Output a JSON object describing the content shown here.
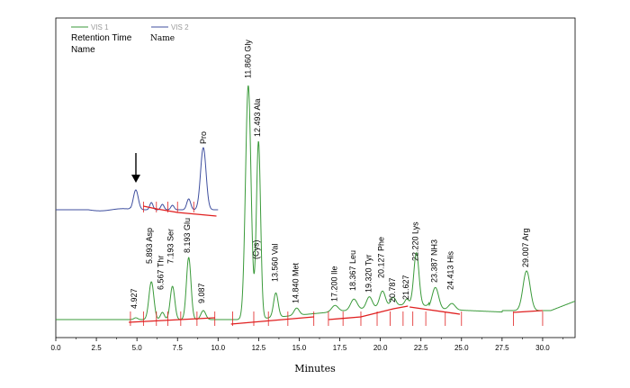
{
  "legend": {
    "series1": "VIS 1",
    "series2": "VIS 2",
    "line1_left": "Retention Time",
    "line1_right": "Name",
    "line2": "Name"
  },
  "colors": {
    "green": "#3a9a3a",
    "blue": "#3f4f9f",
    "baseline": "#e02020",
    "arrow": "#000000",
    "cys": "#a0339a",
    "pro": "#8a2a6a"
  },
  "chart_data": {
    "type": "line",
    "xlabel": "Minutes",
    "xlim": [
      0,
      32
    ],
    "xticks": [
      "0.0",
      "2.5",
      "5.0",
      "7.5",
      "10.0",
      "12.5",
      "15.0",
      "17.5",
      "20.0",
      "22.5",
      "25.0",
      "27.5",
      "30.0"
    ],
    "series": [
      {
        "name": "VIS 1"
      },
      {
        "name": "VIS 2"
      }
    ],
    "peaks_vis1": [
      {
        "rt": "4.927",
        "name": ""
      },
      {
        "rt": "5.893",
        "name": "Asp"
      },
      {
        "rt": "6.567",
        "name": "Thr"
      },
      {
        "rt": "7.193",
        "name": "Ser"
      },
      {
        "rt": "8.193",
        "name": "Glu"
      },
      {
        "rt": "9.087",
        "name": ""
      },
      {
        "rt": "11.860",
        "name": "Gly"
      },
      {
        "rt": "12.493",
        "name": "Ala"
      },
      {
        "rt": "",
        "name": "(Cys)"
      },
      {
        "rt": "13.560",
        "name": "Val"
      },
      {
        "rt": "14.840",
        "name": "Met"
      },
      {
        "rt": "17.200",
        "name": "Ile"
      },
      {
        "rt": "18.367",
        "name": "Leu"
      },
      {
        "rt": "19.320",
        "name": "Tyr"
      },
      {
        "rt": "20.127",
        "name": "Phe"
      },
      {
        "rt": "20.787",
        "name": ""
      },
      {
        "rt": "21.627",
        "name": ""
      },
      {
        "rt": "22.220",
        "name": "Lys"
      },
      {
        "rt": "23.387",
        "name": "NH3"
      },
      {
        "rt": "24.413",
        "name": "His"
      },
      {
        "rt": "29.007",
        "name": "Arg"
      }
    ],
    "peaks_vis2": [
      {
        "rt": "",
        "name": "Pro"
      }
    ]
  }
}
